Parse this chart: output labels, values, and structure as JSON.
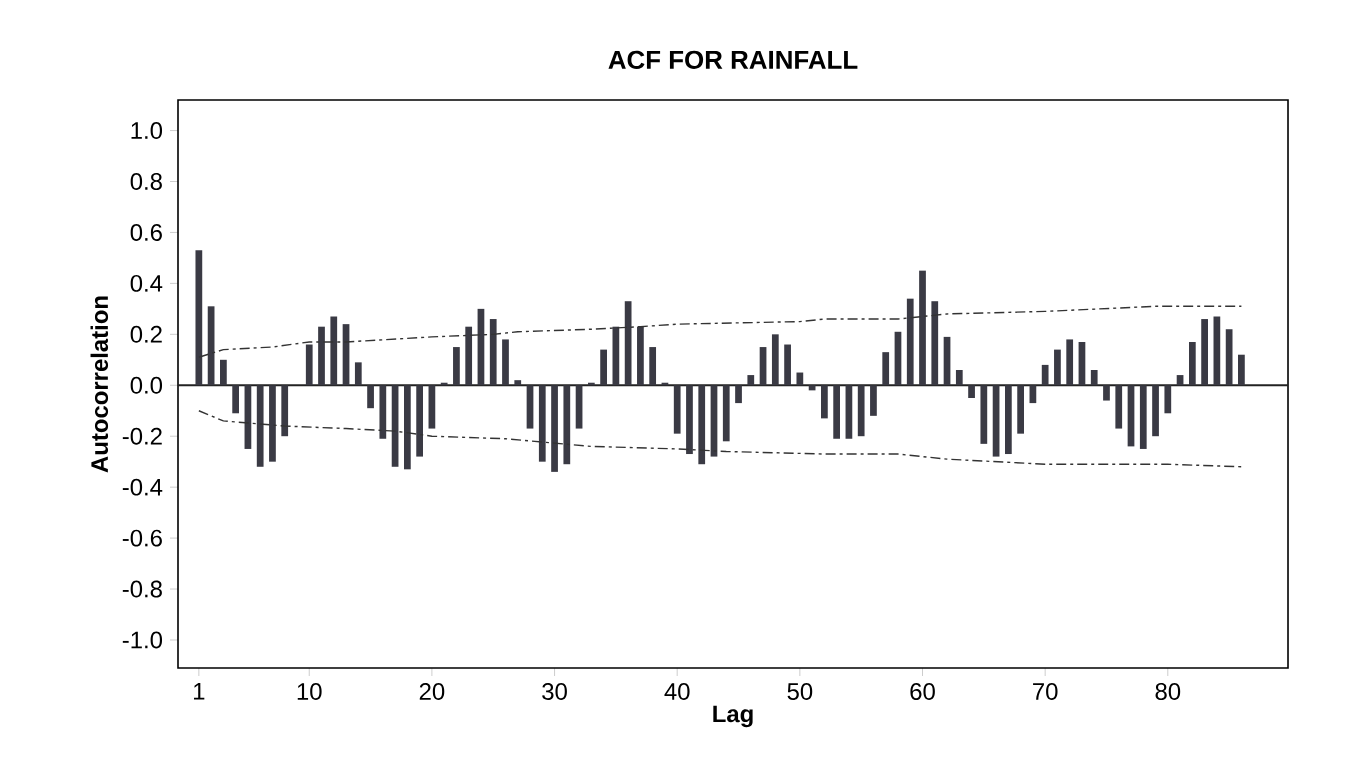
{
  "chart_data": {
    "type": "bar",
    "title": "ACF FOR RAINFALL",
    "xlabel": "Lag",
    "ylabel": "Autocorrelation",
    "xlim": [
      -0.7,
      89.8
    ],
    "ylim": [
      -1.11,
      1.12
    ],
    "xticks": [
      1,
      10,
      20,
      30,
      40,
      50,
      60,
      70,
      80
    ],
    "yticks": [
      {
        "value": -1.0,
        "label": "-1.0"
      },
      {
        "value": -0.8,
        "label": "-0.8"
      },
      {
        "value": -0.6,
        "label": "-0.6"
      },
      {
        "value": -0.4,
        "label": "-0.4"
      },
      {
        "value": -0.2,
        "label": "-0.2"
      },
      {
        "value": 0.0,
        "label": "0.0"
      },
      {
        "value": 0.2,
        "label": "0.2"
      },
      {
        "value": 0.4,
        "label": "0.4"
      },
      {
        "value": 0.6,
        "label": "0.6"
      },
      {
        "value": 0.8,
        "label": "0.8"
      },
      {
        "value": 1.0,
        "label": "1.0"
      }
    ],
    "ref_lines": [
      {
        "axis": "y",
        "value": 0,
        "color": "#222222"
      }
    ],
    "series": [
      {
        "color": "#3a3a44",
        "x": [
          1,
          2,
          3,
          4,
          5,
          6,
          7,
          8,
          9,
          10,
          11,
          12,
          13,
          14,
          15,
          16,
          17,
          18,
          19,
          20,
          21,
          22,
          23,
          24,
          25,
          26,
          27,
          28,
          29,
          30,
          31,
          32,
          33,
          34,
          35,
          36,
          37,
          38,
          39,
          40,
          41,
          42,
          43,
          44,
          45,
          46,
          47,
          48,
          49,
          50,
          51,
          52,
          53,
          54,
          55,
          56,
          57,
          58,
          59,
          60,
          61,
          62,
          63,
          64,
          65,
          66,
          67,
          68,
          69,
          70,
          71,
          72,
          73,
          74,
          75,
          76,
          77,
          78,
          79,
          80,
          81,
          82,
          83,
          84,
          85,
          86
        ],
        "values": [
          0.53,
          0.31,
          0.1,
          -0.11,
          -0.25,
          -0.32,
          -0.3,
          -0.2,
          0.0,
          0.16,
          0.23,
          0.27,
          0.24,
          0.09,
          -0.09,
          -0.21,
          -0.32,
          -0.33,
          -0.28,
          -0.17,
          0.01,
          0.15,
          0.23,
          0.3,
          0.26,
          0.18,
          0.02,
          -0.17,
          -0.3,
          -0.34,
          -0.31,
          -0.17,
          0.01,
          0.14,
          0.23,
          0.33,
          0.23,
          0.15,
          0.01,
          -0.19,
          -0.27,
          -0.31,
          -0.28,
          -0.22,
          -0.07,
          0.04,
          0.15,
          0.2,
          0.16,
          0.05,
          -0.02,
          -0.13,
          -0.21,
          -0.21,
          -0.2,
          -0.12,
          0.13,
          0.21,
          0.34,
          0.45,
          0.33,
          0.19,
          0.06,
          -0.05,
          -0.23,
          -0.28,
          -0.27,
          -0.19,
          -0.07,
          0.08,
          0.14,
          0.18,
          0.17,
          0.06,
          -0.06,
          -0.17,
          -0.24,
          -0.25,
          -0.2,
          -0.11,
          0.04,
          0.17,
          0.26,
          0.27,
          0.22,
          0.12
        ]
      },
      {
        "type": "line",
        "color": "#333333",
        "line_style": "dashed",
        "x": [
          1,
          3,
          7,
          10,
          13,
          20,
          25,
          27,
          33,
          37,
          40,
          50,
          52,
          58,
          60,
          62,
          70,
          79,
          86
        ],
        "values": [
          0.11,
          0.14,
          0.15,
          0.17,
          0.17,
          0.19,
          0.2,
          0.21,
          0.22,
          0.23,
          0.24,
          0.25,
          0.26,
          0.26,
          0.27,
          0.28,
          0.29,
          0.31,
          0.31
        ]
      },
      {
        "type": "line",
        "color": "#333333",
        "line_style": "dashed",
        "x": [
          1,
          3,
          8,
          13,
          17,
          20,
          26,
          33,
          40,
          44,
          52,
          58,
          62,
          66,
          70,
          80,
          86
        ],
        "values": [
          -0.1,
          -0.14,
          -0.16,
          -0.17,
          -0.18,
          -0.2,
          -0.21,
          -0.24,
          -0.25,
          -0.26,
          -0.27,
          -0.27,
          -0.29,
          -0.3,
          -0.31,
          -0.31,
          -0.32
        ]
      }
    ]
  }
}
